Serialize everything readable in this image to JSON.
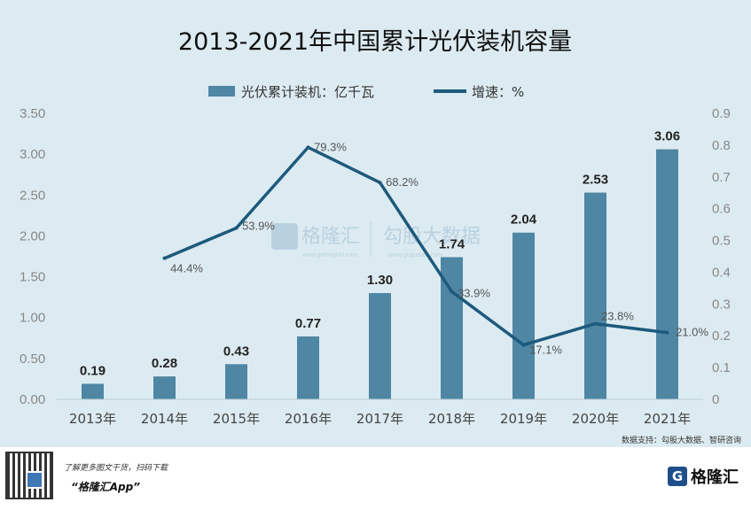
{
  "chart_data": {
    "type": "bar",
    "title": "2013-2021年中国累计光伏装机容量",
    "categories": [
      "2013年",
      "2014年",
      "2015年",
      "2016年",
      "2017年",
      "2018年",
      "2019年",
      "2020年",
      "2021年"
    ],
    "series": [
      {
        "name": "光伏累计装机：亿千瓦",
        "type": "bar",
        "axis": "left",
        "values": [
          0.19,
          0.28,
          0.43,
          0.77,
          1.3,
          1.74,
          2.04,
          2.53,
          3.06
        ],
        "labels": [
          "0.19",
          "0.28",
          "0.43",
          "0.77",
          "1.30",
          "1.74",
          "2.04",
          "2.53",
          "3.06"
        ]
      },
      {
        "name": "增速：%",
        "type": "line",
        "axis": "right",
        "values": [
          null,
          0.444,
          0.539,
          0.793,
          0.682,
          0.339,
          0.171,
          0.238,
          0.21
        ],
        "labels": [
          "",
          "44.4%",
          "53.9%",
          "79.3%",
          "68.2%",
          "33.9%",
          "17.1%",
          "23.8%",
          "21.0%"
        ]
      }
    ],
    "y_left": {
      "range": [
        0,
        3.5
      ],
      "ticks": [
        "0.00",
        "0.50",
        "1.00",
        "1.50",
        "2.00",
        "2.50",
        "3.00",
        "3.50"
      ]
    },
    "y_right": {
      "range": [
        0,
        0.9
      ],
      "ticks": [
        "0",
        "0.1",
        "0.2",
        "0.3",
        "0.4",
        "0.5",
        "0.6",
        "0.7",
        "0.8",
        "0.9"
      ]
    },
    "legend_position": "top-center",
    "grid": false,
    "colors": {
      "bar": "#4e86a4",
      "line": "#1d5a7d",
      "background": "#dcebf1"
    }
  },
  "watermark": {
    "brand": "格隆汇",
    "brand_sub": "www.gelonghui.com",
    "partner": "勾股大数据",
    "partner_sub": "www.gogudata.com"
  },
  "source": "数据支持：勾股大数据、智研咨询",
  "footer": {
    "line1": "了解更多图文干货，扫码下载",
    "line2": "“格隆汇App”",
    "brand_mark": "G",
    "brand_name": "格隆汇"
  }
}
